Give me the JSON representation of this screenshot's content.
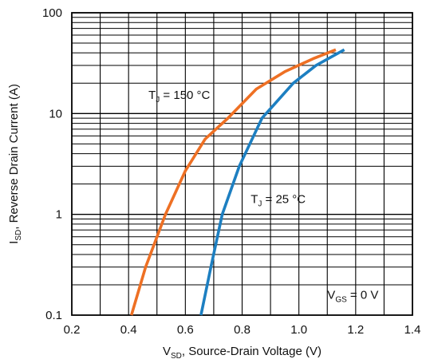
{
  "chart_data": {
    "type": "line",
    "title": "",
    "xlabel": {
      "main": "V",
      "sub": "SD",
      "rest": ", Source-Drain Voltage (V)"
    },
    "ylabel": {
      "main": "I",
      "sub": "SD",
      "rest": ", Reverse Drain Current (A)"
    },
    "xlim": [
      0.2,
      1.4
    ],
    "ylim": [
      0.1,
      100
    ],
    "yscale": "log",
    "x_ticks": [
      0.2,
      0.4,
      0.6,
      0.8,
      1.0,
      1.2,
      1.4
    ],
    "x_tick_labels": [
      "0.2",
      "0.4",
      "0.6",
      "0.8",
      "1.0",
      "1.2",
      "1.4"
    ],
    "y_ticks": [
      0.1,
      1,
      10,
      100
    ],
    "y_tick_labels": [
      "0.1",
      "1",
      "10",
      "100"
    ],
    "x_grid_step": 0.1,
    "grid": true,
    "series": [
      {
        "name": {
          "main": "T",
          "sub": "J",
          "rest": " = 150 °C"
        },
        "color": "#ee7024",
        "points": [
          [
            0.41,
            0.1
          ],
          [
            0.46,
            0.3
          ],
          [
            0.53,
            1.0
          ],
          [
            0.6,
            2.7
          ],
          [
            0.67,
            5.6
          ],
          [
            0.75,
            9.0
          ],
          [
            0.85,
            17.5
          ],
          [
            0.95,
            26.0
          ],
          [
            1.05,
            35.0
          ],
          [
            1.13,
            43.0
          ]
        ]
      },
      {
        "name": {
          "main": "T",
          "sub": "J",
          "rest": " = 25 °C"
        },
        "color": "#1d7fc1",
        "points": [
          [
            0.655,
            0.1
          ],
          [
            0.69,
            0.3
          ],
          [
            0.73,
            1.0
          ],
          [
            0.79,
            3.0
          ],
          [
            0.87,
            9.0
          ],
          [
            0.98,
            20.0
          ],
          [
            1.06,
            30.0
          ],
          [
            1.16,
            43.0
          ]
        ]
      }
    ],
    "annotations": [
      {
        "main": "V",
        "sub": "GS",
        "rest": " = 0 V",
        "ax": 1.1,
        "ay": 0.145
      }
    ],
    "label_anchors": [
      {
        "ax": 0.47,
        "ay": 14.0
      },
      {
        "ax": 0.83,
        "ay": 1.3
      }
    ]
  }
}
